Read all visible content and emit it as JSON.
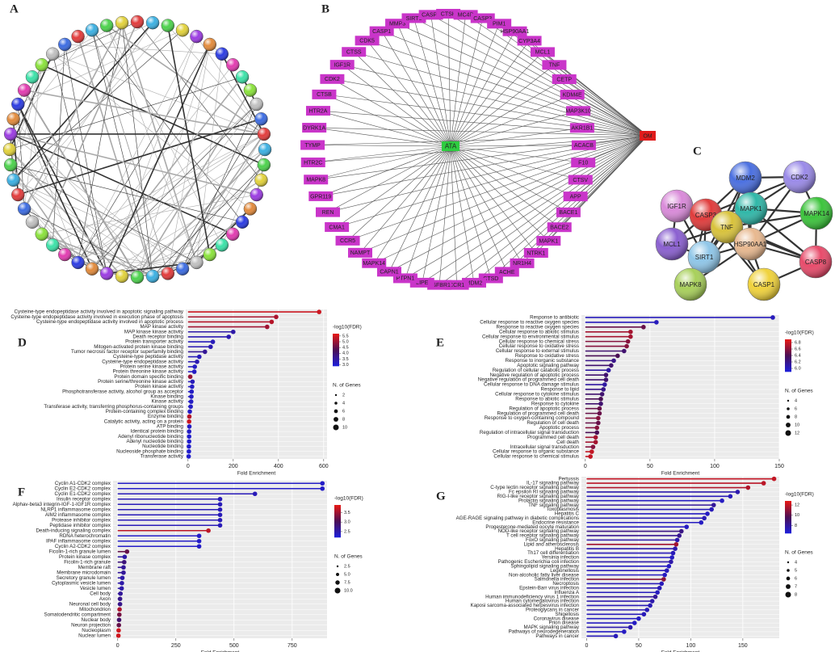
{
  "network_a": {
    "label": "A"
  },
  "network_b": {
    "label": "B",
    "center": "ATA",
    "target": "OM",
    "nodes": [
      "MMP3",
      "SIRT1",
      "CASP8",
      "CTSK",
      "MC4R",
      "CASP3",
      "PIM1",
      "HSP90AA1",
      "CYP3A4",
      "MCL1",
      "TNF",
      "CETP",
      "KDM4E",
      "MAP3K10",
      "AKR1B1",
      "ACACB",
      "F10",
      "CTSV",
      "APP",
      "BACE1",
      "BACE2",
      "MAPK1",
      "NTRK1",
      "NR1H4",
      "ACHE",
      "CTSD",
      "MDM2",
      "CCR1",
      "TGFBR1",
      "LIPE",
      "PTPN1",
      "CAPN1",
      "MAPK14",
      "NAMPT",
      "CCR5",
      "CMA1",
      "REN",
      "GPR119",
      "MAPK8",
      "HTR2C",
      "TYMP",
      "DYRK1A",
      "HTR2A",
      "CTSB",
      "CDK2",
      "IGF1R",
      "CTSS",
      "CDK5",
      "CASP1"
    ]
  },
  "network_c": {
    "label": "C",
    "nodes": [
      "IGF1R",
      "MDM2",
      "CDK2",
      "CASP3",
      "MAPK1",
      "MAPK14",
      "MCL1",
      "TNF",
      "SIRT1",
      "HSP90AA1",
      "CASP8",
      "MAPK8",
      "CASP1"
    ]
  },
  "chart_data": [
    {
      "type": "lollipop",
      "label": "D",
      "xlabel": "Fold Enrichment",
      "categories": [
        "Cysteine-type endopeptidase activity involved in apoptotic signaling pathway",
        "Cysteine-type endopeptidase activity involved in execution phase of apoptosis",
        "Cysteine-type endopeptidase activity involved in apoptotic process",
        "MAP kinase activity",
        "MAP kinase kinase activity",
        "Death receptor binding",
        "Protein transporter activity",
        "Mitogen-activated protein kinase binding",
        "Tumor necrosis factor receptor superfamily binding",
        "Cysteine-type peptidase activity",
        "Cysteine-type endopeptidase activity",
        "Protein serine kinase activity",
        "Protein threonine kinase activity",
        "Protein domain specific binding",
        "Protein serine/threonine kinase activity",
        "Protein kinase activity",
        "Phosphotransferase activity, alcohol group as acceptor",
        "Kinase binding",
        "Kinase activity",
        "Transferase activity, transferring phosphorus-containing groups",
        "Protein-containing complex binding",
        "Enzyme binding",
        "Catalytic activity, acting on a protein",
        "ATP binding",
        "Identical protein binding",
        "Adenyl ribonucleotide binding",
        "Adenyl nucleotide binding",
        "Nucleotide binding",
        "Nucleoside phosphate binding",
        "Transferase activity"
      ],
      "values": [
        580,
        390,
        370,
        350,
        200,
        180,
        110,
        100,
        75,
        50,
        40,
        30,
        28,
        10,
        20,
        18,
        16,
        15,
        14,
        12,
        8,
        6,
        5,
        6,
        5,
        5,
        5,
        4,
        4,
        3
      ],
      "fdr": [
        5.5,
        5.2,
        5.3,
        5.1,
        3.4,
        3.3,
        3.2,
        3.3,
        3.6,
        3.2,
        3.3,
        3.1,
        3.1,
        5.0,
        3.2,
        3.1,
        3.1,
        3.1,
        3.1,
        3.1,
        3.1,
        5.3,
        5.5,
        3.1,
        3.1,
        3.0,
        3.0,
        3.0,
        3.0,
        3.0
      ],
      "xlim": [
        -10,
        615
      ],
      "xticks": [
        0,
        200,
        400,
        600
      ],
      "color_legend": {
        "title": "-log10(FDR)",
        "lim": [
          2.9,
          5.7
        ],
        "ticks": [
          {
            "value": 3,
            "label": "3.0"
          },
          3.5,
          {
            "value": 4,
            "label": "4.0"
          },
          4.5,
          {
            "value": 5,
            "label": "5.0"
          },
          5.5
        ],
        "colors": [
          "#1f1fd6",
          "#4a0f55",
          "#e01818"
        ]
      },
      "size_legend": {
        "title": "N. of Genes",
        "ticks": [
          2,
          4,
          6,
          8,
          10
        ]
      }
    },
    {
      "type": "lollipop",
      "label": "E",
      "xlabel": "Fold Enrichment",
      "categories": [
        "Response to antibiotic",
        "Cellular response to reactive oxygen species",
        "Response to reactive oxygen species",
        "Cellular response to abiotic stimulus",
        "Cellular response to environmental stimulus",
        "Cellular response to chemical stress",
        "Cellular response to oxidative stress",
        "Cellular response to external stimulus",
        "Response to oxidative stress",
        "Response to inorganic substance",
        "Apoptotic signaling pathway",
        "Regulation of cellular catabolic process",
        "Negative regulation of apoptotic process",
        "Negative regulation of programmed cell death",
        "Cellular response to DNA damage stimulus",
        "Response to lipid",
        "Cellular response to cytokine stimulus",
        "Response to abiotic stimulus",
        "Response to cytokine",
        "Regulation of apoptotic process",
        "Regulation of programmed cell death",
        "Response to oxygen-containing compound",
        "Regulation of cell death",
        "Apoptotic process",
        "Regulation of intracellular signal transduction",
        "Programmed cell death",
        "Cell death",
        "Intracellular signal transduction",
        "Cellular response to organic substance",
        "Cellular response to chemical stimulus"
      ],
      "values": [
        145,
        55,
        45,
        35,
        35,
        33,
        32,
        30,
        25,
        22,
        20,
        18,
        16,
        16,
        15,
        14,
        13,
        12,
        12,
        11,
        11,
        10,
        10,
        9,
        9,
        8,
        8,
        6,
        5,
        4
      ],
      "fdr": [
        6.0,
        6.0,
        6.5,
        6.7,
        6.7,
        6.6,
        6.6,
        6.3,
        6.4,
        6.2,
        6.3,
        6.1,
        6.3,
        6.3,
        6.1,
        6.2,
        6.3,
        6.4,
        6.3,
        6.5,
        6.5,
        6.6,
        6.5,
        6.6,
        6.4,
        6.7,
        6.7,
        6.6,
        6.8,
        6.8
      ],
      "xlim": [
        -3,
        150
      ],
      "xticks": [
        0,
        50,
        100,
        150
      ],
      "color_legend": {
        "title": "-log10(FDR)",
        "lim": [
          5.9,
          6.9
        ],
        "ticks": [
          {
            "value": 6,
            "label": "6.0"
          },
          6.2,
          6.4,
          6.6,
          6.8
        ],
        "colors": [
          "#1f1fd6",
          "#4a0f55",
          "#e01818"
        ]
      },
      "size_legend": {
        "title": "N. of Genes",
        "ticks": [
          4,
          6,
          8,
          10,
          12
        ]
      }
    },
    {
      "type": "lollipop",
      "label": "F",
      "xlabel": "Fold Enrichment",
      "categories": [
        "Cyclin A1-CDK2 complex",
        "Cyclin E2-CDK2 complex",
        "Cyclin E1-CDK2 complex",
        "Insulin receptor complex",
        "Alphav-beta3 integrin-IGF-1-IGF1R complex",
        "NLRP1 inflammasome complex",
        "AIM2 inflammasome complex",
        "Protease inhibitor complex",
        "Peptidase inhibitor complex",
        "Death-inducing signaling complex",
        "RDNA heterochromatin",
        "IPAF inflammasome complex",
        "Cyclin A2-CDK2 complex",
        "Ficolin-1-rich granule lumen",
        "Protein kinase complex",
        "Ficolin-1-rich granule",
        "Membrane raft",
        "Membrane microdomain",
        "Secretory granule lumen",
        "Cytoplasmic vesicle lumen",
        "Vesicle lumen",
        "Cell body",
        "Axon",
        "Neuronal cell body",
        "Mitochondrion",
        "Somatodendritic compartment",
        "Nuclear body",
        "Neuron projection",
        "Nucleoplasm",
        "Nuclear lumen"
      ],
      "values": [
        880,
        880,
        590,
        440,
        440,
        440,
        440,
        440,
        440,
        390,
        350,
        350,
        350,
        40,
        30,
        28,
        25,
        25,
        20,
        18,
        17,
        12,
        10,
        10,
        8,
        7,
        6,
        5,
        4,
        3
      ],
      "fdr": [
        2.3,
        2.3,
        2.4,
        2.4,
        2.4,
        2.4,
        2.4,
        2.4,
        2.4,
        3.7,
        2.3,
        2.3,
        2.3,
        3.2,
        2.5,
        2.8,
        2.6,
        2.6,
        2.5,
        2.5,
        2.5,
        2.6,
        2.7,
        2.7,
        3.6,
        3.3,
        2.9,
        3.2,
        3.8,
        3.8
      ],
      "xlim": [
        -20,
        900
      ],
      "xticks": [
        0,
        250,
        500,
        750
      ],
      "color_legend": {
        "title": "-log10(FDR)",
        "lim": [
          2.2,
          3.9
        ],
        "ticks": [
          2.5,
          {
            "value": 3,
            "label": "3.0"
          },
          3.5
        ],
        "colors": [
          "#1f1fd6",
          "#4a0f55",
          "#e01818"
        ]
      },
      "size_legend": {
        "title": "N. of Genes",
        "ticks": [
          2.5,
          {
            "value": 5,
            "label": "5.0"
          },
          7.5,
          {
            "value": 10,
            "label": "10.0"
          }
        ]
      }
    },
    {
      "type": "lollipop",
      "label": "G",
      "xlabel": "Fold Enrichment",
      "categories": [
        "Pertussis",
        "IL-17 signaling pathway",
        "C-type lectin receptor signaling pathway",
        "Fc epsilon RI signaling pathway",
        "RIG-I-like receptor signaling pathway",
        "Prolactin signaling pathway",
        "TNF signaling pathway",
        "Toxoplasmosis",
        "Hepatitis C",
        "AGE-RAGE signaling pathway in diabetic complications",
        "Endocrine resistance",
        "Progesterone-mediated oocyte maturation",
        "NOD-like receptor signaling pathway",
        "T cell receptor signaling pathway",
        "FoxO signaling pathway",
        "Lipid and atherosclerosis",
        "Hepatitis B",
        "Th17 cell differentiation",
        "Yersinia infection",
        "Pathogenic Escherichia coli infection",
        "Sphingolipid signaling pathway",
        "Legionellosis",
        "Non-alcoholic fatty liver disease",
        "Salmonella infection",
        "Necroptosis",
        "Epstein-Barr virus infection",
        "Influenza A",
        "Human immunodeficiency virus 1 infection",
        "Human cytomegalovirus infection",
        "Kaposi sarcoma-associated herpesvirus infection",
        "Proteoglycans in cancer",
        "Shigellosis",
        "Coronavirus disease",
        "Prion disease",
        "MAPK signaling pathway",
        "Pathways of neurodegeneration",
        "Pathways in cancer"
      ],
      "values": [
        180,
        170,
        155,
        145,
        138,
        130,
        122,
        120,
        116,
        113,
        110,
        96,
        91,
        89,
        87,
        86,
        85,
        83,
        82,
        81,
        79,
        77,
        75,
        74,
        72,
        70,
        68,
        66,
        63,
        61,
        58,
        55,
        50,
        46,
        42,
        36,
        28
      ],
      "fdr": [
        12.2,
        12.0,
        11.8,
        7.5,
        7.2,
        7.0,
        8.0,
        7.2,
        7.0,
        7.3,
        7.0,
        7.0,
        8.5,
        8.2,
        7.5,
        11.5,
        7.5,
        7.2,
        7.0,
        7.6,
        7.0,
        7.2,
        7.0,
        11.0,
        7.2,
        7.3,
        7.1,
        8.0,
        7.5,
        7.3,
        7.3,
        7.2,
        7.0,
        7.0,
        7.5,
        7.0,
        7.2
      ],
      "xlim": [
        -5,
        185
      ],
      "xticks": [
        0,
        50,
        100,
        150
      ],
      "color_legend": {
        "title": "-log10(FDR)",
        "lim": [
          6.5,
          12.8
        ],
        "ticks": [
          8,
          10,
          12
        ],
        "colors": [
          "#1f1fd6",
          "#4a0f55",
          "#e01818"
        ]
      },
      "size_legend": {
        "title": "N. of Genes",
        "ticks": [
          4,
          5,
          6,
          7,
          8
        ]
      }
    }
  ]
}
